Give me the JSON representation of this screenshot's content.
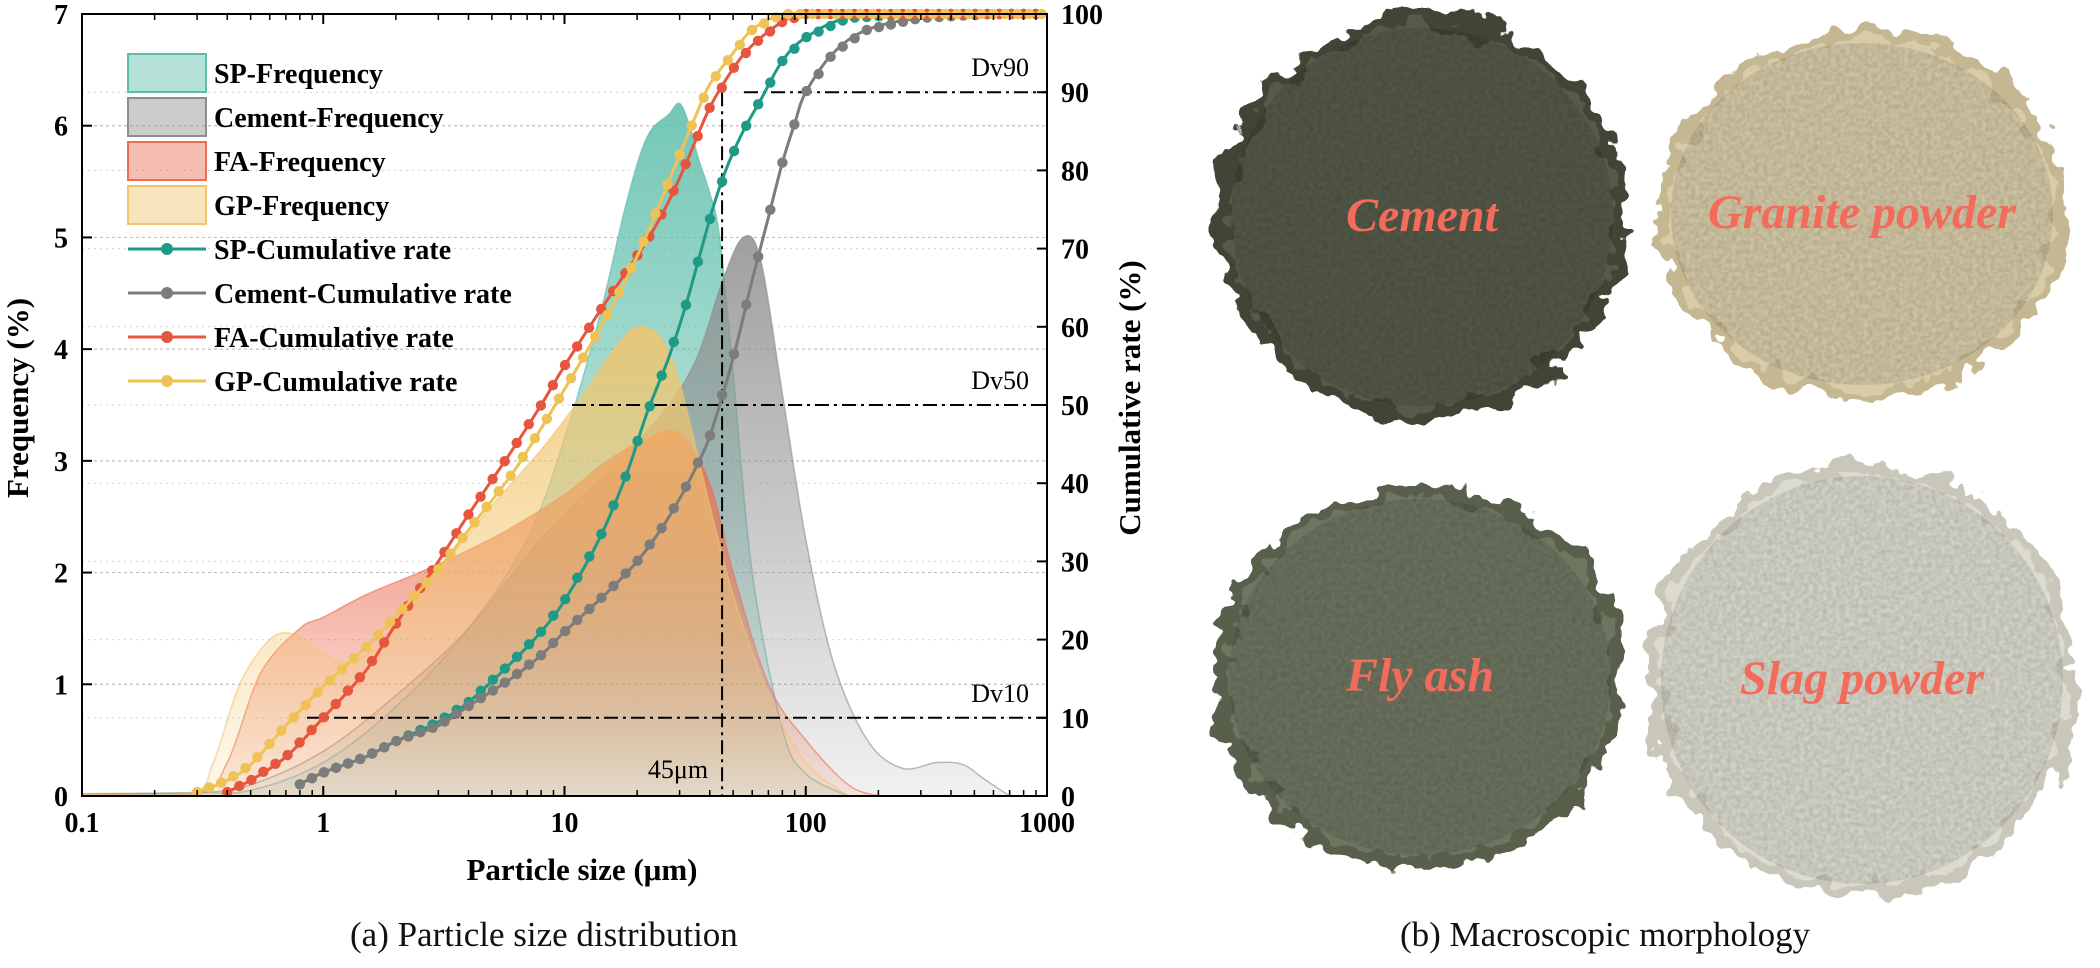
{
  "chart_data": {
    "type": "area",
    "x_scale": "log",
    "xlim": [
      0.1,
      1000
    ],
    "ylim": [
      0,
      7
    ],
    "y2lim": [
      0,
      100
    ],
    "xticks": [
      0.1,
      1,
      10,
      100,
      1000
    ],
    "xtick_labels": [
      "0.1",
      "1",
      "10",
      "100",
      "1000"
    ],
    "yticks": [
      0,
      1,
      2,
      3,
      4,
      5,
      6,
      7
    ],
    "ytick_labels": [
      "0",
      "1",
      "2",
      "3",
      "4",
      "5",
      "6",
      "7"
    ],
    "y2ticks": [
      0,
      10,
      20,
      30,
      40,
      50,
      60,
      70,
      80,
      90,
      100
    ],
    "y2tick_labels": [
      "0",
      "10",
      "20",
      "30",
      "40",
      "50",
      "60",
      "70",
      "80",
      "90",
      "100"
    ],
    "xlabel": "Particle size (μm)",
    "ylabel": "Frequency (%)",
    "y2label": "Cumulative rate (%)",
    "grid": "horizontal dotted",
    "legend_position": "top-left",
    "reference_lines": [
      {
        "label": "Dv90",
        "y2": 90
      },
      {
        "label": "Dv50",
        "y2": 50
      },
      {
        "label": "Dv10",
        "y2": 10
      },
      {
        "label": "45μm",
        "x": 45
      }
    ],
    "series": [
      {
        "name": "SP-Frequency",
        "kind": "frequency",
        "color": "#5bbdaa",
        "x": [
          0.1,
          0.3,
          0.5,
          1,
          2,
          4,
          7,
          10,
          14,
          18,
          22,
          27,
          30,
          33,
          36,
          40,
          44,
          50,
          60,
          80,
          100,
          150
        ],
        "y": [
          0.02,
          0.03,
          0.05,
          0.3,
          0.8,
          1.5,
          2.3,
          3.2,
          4.3,
          5.3,
          5.9,
          6.1,
          6.2,
          6.0,
          5.7,
          5.4,
          5.0,
          3.8,
          2.0,
          0.6,
          0.2,
          0.0
        ]
      },
      {
        "name": "Cement-Frequency",
        "kind": "frequency",
        "color": "#8e8e8e",
        "x": [
          0.1,
          0.3,
          0.5,
          1,
          2,
          4,
          8,
          15,
          25,
          35,
          45,
          55,
          65,
          80,
          100,
          130,
          180,
          250,
          350,
          450,
          550,
          700
        ],
        "y": [
          0.02,
          0.03,
          0.1,
          0.4,
          0.9,
          1.5,
          2.3,
          2.9,
          3.4,
          3.9,
          4.6,
          5.0,
          4.8,
          3.6,
          2.3,
          1.2,
          0.5,
          0.25,
          0.3,
          0.28,
          0.15,
          0.0
        ]
      },
      {
        "name": "FA-Frequency",
        "kind": "frequency",
        "color": "#ea6f52",
        "x": [
          0.1,
          0.3,
          0.4,
          0.55,
          0.8,
          1.0,
          1.5,
          2.5,
          4,
          6,
          10,
          15,
          22,
          30,
          40,
          50,
          70,
          100,
          150,
          200
        ],
        "y": [
          0.02,
          0.03,
          0.3,
          1.1,
          1.5,
          1.6,
          1.8,
          2.0,
          2.2,
          2.4,
          2.7,
          3.0,
          3.2,
          3.25,
          2.8,
          2.0,
          1.0,
          0.5,
          0.1,
          0.0
        ]
      },
      {
        "name": "GP-Frequency",
        "kind": "frequency",
        "color": "#f2c56c",
        "x": [
          0.1,
          0.28,
          0.35,
          0.45,
          0.6,
          0.75,
          0.95,
          1.3,
          2,
          3,
          5,
          8,
          12,
          16,
          20,
          25,
          30,
          40,
          50,
          70,
          100,
          150
        ],
        "y": [
          0.02,
          0.03,
          0.3,
          1.0,
          1.4,
          1.45,
          1.3,
          1.2,
          1.5,
          2.0,
          2.6,
          3.1,
          3.6,
          4.0,
          4.2,
          4.1,
          3.7,
          2.6,
          1.8,
          0.9,
          0.3,
          0.0
        ]
      },
      {
        "name": "SP-Cumulative rate",
        "kind": "cumulative",
        "color": "#1f9a86",
        "x": [
          0.8,
          1,
          1.5,
          2,
          3,
          4,
          6,
          8,
          10,
          14,
          18,
          22,
          27,
          32,
          37,
          42,
          48,
          55,
          65,
          80,
          100,
          150,
          300,
          1000
        ],
        "y": [
          1.5,
          3,
          5,
          7,
          9.5,
          12,
          17,
          21,
          25,
          33,
          41,
          49,
          56,
          63,
          70,
          76,
          81,
          85,
          89,
          94,
          97,
          99.5,
          100,
          100
        ]
      },
      {
        "name": "Cement-Cumulative rate",
        "kind": "cumulative",
        "color": "#7c7c7c",
        "x": [
          0.8,
          1,
          1.5,
          2,
          3,
          4,
          6,
          8,
          10,
          15,
          20,
          25,
          30,
          35,
          40,
          50,
          60,
          70,
          80,
          90,
          100,
          130,
          180,
          300,
          600,
          1000
        ],
        "y": [
          1.5,
          3,
          5,
          7,
          9,
          11.5,
          15,
          18,
          21,
          26,
          30,
          34,
          38,
          42,
          46,
          56,
          66,
          74,
          81,
          86,
          90,
          95,
          98,
          99.5,
          100,
          100
        ]
      },
      {
        "name": "FA-Cumulative rate",
        "kind": "cumulative",
        "color": "#e6553d",
        "x": [
          0.4,
          0.5,
          0.7,
          1,
          1.5,
          2,
          3,
          4,
          6,
          8,
          10,
          14,
          18,
          22,
          27,
          32,
          40,
          50,
          60,
          80,
          100,
          200,
          1000
        ],
        "y": [
          0.5,
          2,
          5,
          10,
          16,
          22,
          30,
          36,
          44,
          50,
          55,
          62,
          67,
          71,
          76,
          81,
          88,
          93,
          96,
          99,
          100,
          100,
          100
        ]
      },
      {
        "name": "GP-Cumulative rate",
        "kind": "cumulative",
        "color": "#efc255",
        "x": [
          0.3,
          0.4,
          0.5,
          0.7,
          1,
          1.5,
          2,
          3,
          4,
          6,
          8,
          10,
          13,
          16,
          20,
          25,
          30,
          35,
          40,
          50,
          60,
          80,
          100,
          200,
          1000
        ],
        "y": [
          0.5,
          2,
          4,
          9,
          14,
          19,
          23,
          29,
          34,
          41,
          47,
          52,
          58,
          63,
          69,
          76,
          82,
          87,
          91,
          95,
          98,
          100,
          100,
          100,
          100
        ]
      }
    ]
  },
  "photos": [
    {
      "label": "Cement",
      "color": "#545a48",
      "edge": "#3f4436"
    },
    {
      "label": "Granite powder",
      "color": "#d7cba8",
      "edge": "#c4b792"
    },
    {
      "label": "Fly ash",
      "color": "#6e7461",
      "edge": "#585e4c"
    },
    {
      "label": "Slag powder",
      "color": "#dcdbcf",
      "edge": "#c8c7b9"
    }
  ],
  "photo_label_color": "#f26b5b",
  "captions": {
    "a": "(a) Particle size distribution",
    "b": "(b) Macroscopic morphology"
  }
}
